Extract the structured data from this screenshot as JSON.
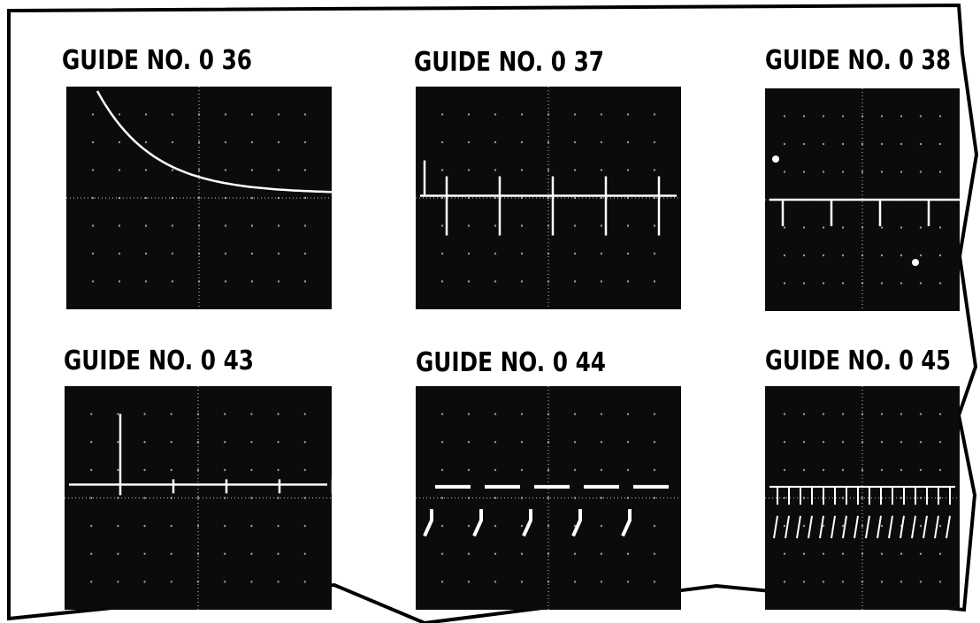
{
  "panels": [
    {
      "label": "GUIDE NO. 0 36"
    },
    {
      "label": "GUIDE NO. 0 37"
    },
    {
      "label": "GUIDE NO. 0 38"
    },
    {
      "label": "GUIDE NO. 0 43"
    },
    {
      "label": "GUIDE NO. 0 44"
    },
    {
      "label": "GUIDE NO. 0 45"
    }
  ]
}
